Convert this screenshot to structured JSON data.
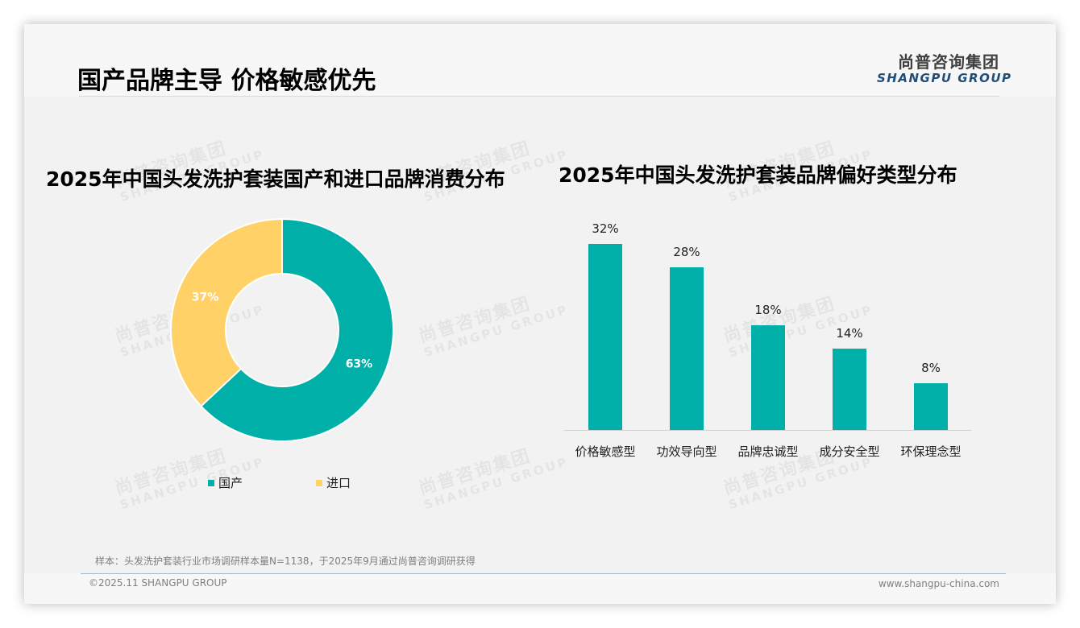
{
  "header": {
    "title": "国产品牌主导 价格敏感优先",
    "logo_cn": "尚普咨询集团",
    "logo_en": "SHANGPU GROUP"
  },
  "watermark": {
    "cn": "尚普咨询集团",
    "en": "SHANGPU GROUP"
  },
  "colors": {
    "teal": "#00b0a8",
    "yellow": "#ffd166",
    "logo_blue": "#1f4e79"
  },
  "left_chart": {
    "title": "2025年中国头发洗护套装国产和进口品牌消费分布",
    "legend": [
      {
        "label": "国产",
        "color": "#00b0a8"
      },
      {
        "label": "进口",
        "color": "#ffd166"
      }
    ]
  },
  "right_chart": {
    "title": "2025年中国头发洗护套装品牌偏好类型分布"
  },
  "chart_data": [
    {
      "type": "pie",
      "subtype": "donut",
      "title": "2025年中国头发洗护套装国产和进口品牌消费分布",
      "categories": [
        "国产",
        "进口"
      ],
      "values": [
        63,
        37
      ],
      "labels": [
        "63%",
        "37%"
      ],
      "colors": [
        "#00b0a8",
        "#ffd166"
      ],
      "legend_position": "bottom"
    },
    {
      "type": "bar",
      "title": "2025年中国头发洗护套装品牌偏好类型分布",
      "categories": [
        "价格敏感型",
        "功效导向型",
        "品牌忠诚型",
        "成分安全型",
        "环保理念型"
      ],
      "values": [
        32,
        28,
        18,
        14,
        8
      ],
      "labels": [
        "32%",
        "28%",
        "18%",
        "14%",
        "8%"
      ],
      "xlabel": "",
      "ylabel": "",
      "ylim": [
        0,
        32
      ],
      "grid": false,
      "color": "#00b0a8"
    }
  ],
  "footer": {
    "note": "样本：头发洗护套装行业市场调研样本量N=1138，于2025年9月通过尚普咨询调研获得",
    "copyright": "©2025.11 SHANGPU GROUP",
    "website": "www.shangpu-china.com"
  }
}
